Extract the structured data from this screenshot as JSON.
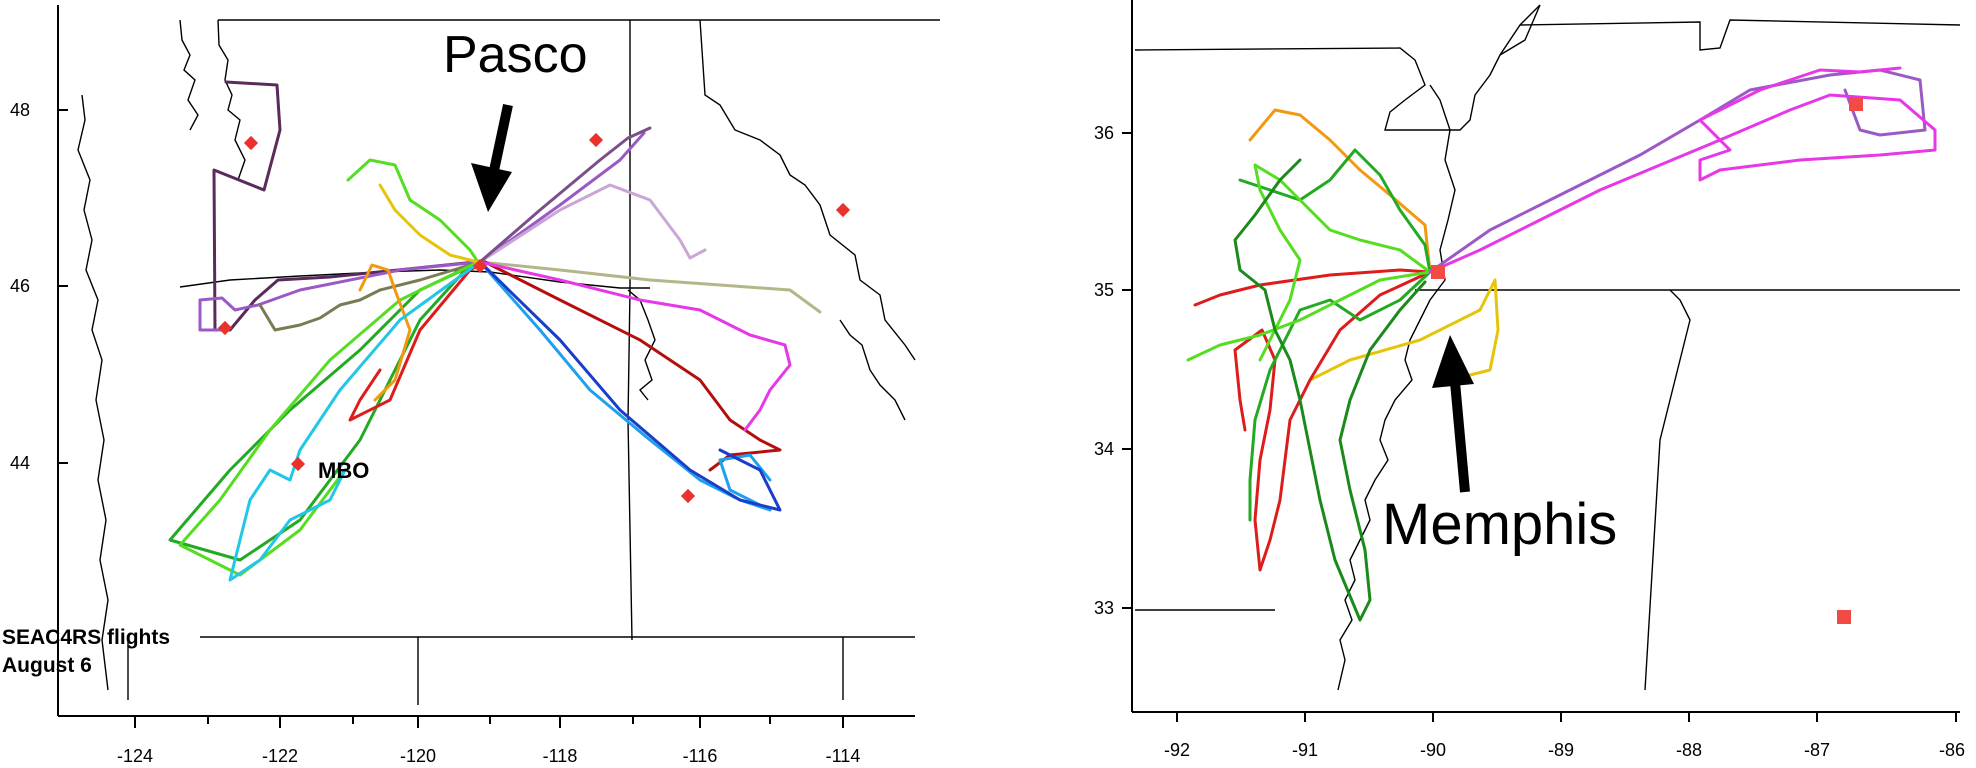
{
  "colors": {
    "site_marker": "#e8322b",
    "site_marker_square": "#f24a45",
    "arrow": "#000000",
    "track_colors": [
      "#5a2a5a",
      "#9b59c6",
      "#7a7a55",
      "#b5b58a",
      "#c9a6d6",
      "#7b4f8a",
      "#22aa22",
      "#55dd22",
      "#f29811",
      "#e6c40c",
      "#dd1c1c",
      "#b30f0f",
      "#22c6e6",
      "#1ea0ee",
      "#1a3ec9",
      "#e638e6",
      "#1b8a1b"
    ]
  },
  "left_map": {
    "callout_label": "Pasco",
    "site_label": "MBO",
    "caption_line1": "SEAC4RS flights",
    "caption_line2": "August 6",
    "x_ticks": [
      "-124",
      "-122",
      "-120",
      "-118",
      "-116",
      "-114"
    ],
    "y_ticks": [
      "48",
      "46",
      "44"
    ]
  },
  "right_map": {
    "callout_label": "Memphis",
    "x_ticks": [
      "-92",
      "-91",
      "-90",
      "-89",
      "-88",
      "-87",
      "-86"
    ],
    "y_ticks": [
      "36",
      "35",
      "34",
      "33"
    ]
  }
}
